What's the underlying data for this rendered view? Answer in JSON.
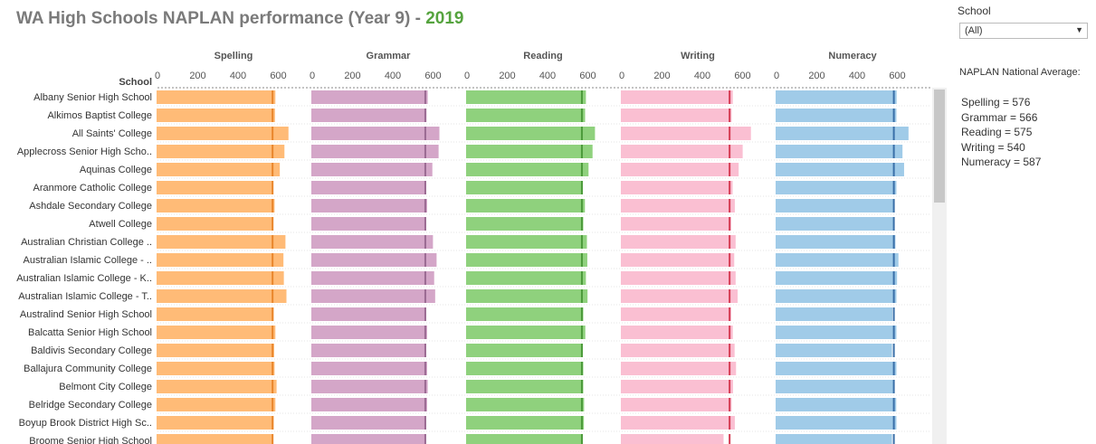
{
  "header": {
    "title_main": "WA High Schools NAPLAN performance (Year 9)",
    "title_sep": " - ",
    "title_year": "2019"
  },
  "filter": {
    "label": "School",
    "selected": "(All)",
    "arrow_icon": "triangle-down-icon"
  },
  "averages": {
    "title": "NAPLAN National Average:",
    "lines": [
      "Spelling = 576",
      "Grammar = 566",
      "Reading = 575",
      "Writing = 540",
      "Numeracy = 587"
    ]
  },
  "chart_data": {
    "type": "bar",
    "orientation": "horizontal",
    "row_header": "School",
    "xlim": [
      0,
      780
    ],
    "ticks": [
      0,
      200,
      400,
      600
    ],
    "grid": false,
    "categories": [
      "Albany Senior High School",
      "Alkimos Baptist College",
      "All Saints' College",
      "Applecross Senior High Scho..",
      "Aquinas College",
      "Aranmore Catholic College",
      "Ashdale Secondary College",
      "Atwell College",
      "Australian Christian College ..",
      "Australian Islamic College - ..",
      "Australian Islamic College - K..",
      "Australian Islamic College - T..",
      "Australind Senior High School",
      "Balcatta Senior High School",
      "Baldivis Secondary College",
      "Ballajura Community College",
      "Belmont City College",
      "Belridge Secondary College",
      "Boyup Brook District High Sc..",
      "Broome Senior High School"
    ],
    "series": [
      {
        "name": "Spelling",
        "color": "#ffbb77",
        "ref_color": "#e8862b",
        "national_average": 576,
        "values": [
          590,
          588,
          655,
          635,
          612,
          580,
          586,
          580,
          640,
          630,
          632,
          645,
          582,
          590,
          584,
          586,
          596,
          590,
          582,
          577
        ]
      },
      {
        "name": "Grammar",
        "color": "#d4a6c8",
        "ref_color": "#9a6a92",
        "national_average": 566,
        "values": [
          578,
          572,
          636,
          632,
          601,
          570,
          575,
          570,
          604,
          622,
          610,
          615,
          570,
          575,
          570,
          575,
          578,
          575,
          570,
          568
        ]
      },
      {
        "name": "Reading",
        "color": "#8fd17d",
        "ref_color": "#4b9a3a",
        "national_average": 575,
        "values": [
          595,
          591,
          640,
          628,
          608,
          580,
          590,
          582,
          600,
          602,
          595,
          603,
          582,
          592,
          580,
          582,
          582,
          586,
          585,
          580
        ]
      },
      {
        "name": "Writing",
        "color": "#fabfd2",
        "ref_color": "#d43a52",
        "national_average": 540,
        "values": [
          556,
          550,
          646,
          605,
          585,
          555,
          566,
          548,
          570,
          563,
          570,
          580,
          548,
          556,
          565,
          572,
          557,
          550,
          566,
          510
        ]
      },
      {
        "name": "Numeracy",
        "color": "#a0cbe8",
        "ref_color": "#3a6fa8",
        "national_average": 587,
        "values": [
          601,
          600,
          660,
          630,
          638,
          600,
          590,
          588,
          595,
          610,
          603,
          600,
          580,
          600,
          578,
          600,
          585,
          599,
          600,
          578
        ]
      }
    ]
  }
}
